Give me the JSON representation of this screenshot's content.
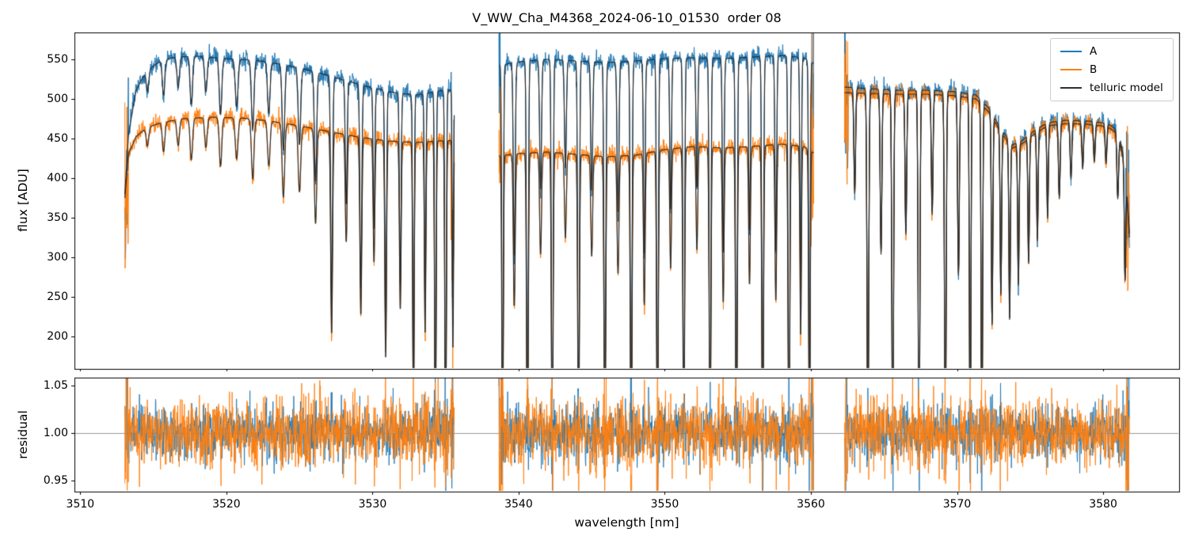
{
  "chart_data": {
    "type": "line",
    "title": "V_WW_Cha_M4368_2024-06-10_01530  order 08",
    "xlabel": "wavelength [nm]",
    "xlim": [
      3509.6,
      3585.2
    ],
    "xticks": [
      3510,
      3520,
      3530,
      3540,
      3550,
      3560,
      3570,
      3580
    ],
    "xtick_labels": [
      "3510",
      "3520",
      "3530",
      "3540",
      "3550",
      "3560",
      "3570",
      "3580"
    ],
    "panels": [
      {
        "name": "flux",
        "ylabel": "flux [ADU]",
        "ylim": [
          159,
          584
        ],
        "yticks": [
          200,
          250,
          300,
          350,
          400,
          450,
          500,
          550
        ],
        "ytick_labels": [
          "200",
          "250",
          "300",
          "350",
          "400",
          "450",
          "500",
          "550"
        ]
      },
      {
        "name": "residual",
        "ylabel": "residual",
        "ylim": [
          0.938,
          1.058
        ],
        "yticks": [
          0.95,
          1.0,
          1.05
        ],
        "ytick_labels": [
          "0.95",
          "1.00",
          "1.05"
        ],
        "hline": 1.0,
        "hline_color": "#808080"
      }
    ],
    "legend": [
      {
        "label": "A",
        "color": "#1f77b4"
      },
      {
        "label": "B",
        "color": "#ff7f0e"
      },
      {
        "label": "telluric model",
        "color": "#2e2e2e"
      }
    ],
    "segments": [
      [
        3513.05,
        3535.6
      ],
      [
        3538.65,
        3560.2
      ],
      [
        3562.3,
        3581.8
      ]
    ],
    "continuum_A": [
      [
        3513.05,
        380
      ],
      [
        3513.3,
        455
      ],
      [
        3513.8,
        510
      ],
      [
        3514.5,
        535
      ],
      [
        3515.5,
        548
      ],
      [
        3516.5,
        553
      ],
      [
        3518,
        554
      ],
      [
        3520,
        551
      ],
      [
        3522,
        549
      ],
      [
        3524,
        543
      ],
      [
        3526,
        535
      ],
      [
        3528,
        524
      ],
      [
        3530,
        514
      ],
      [
        3531.5,
        508
      ],
      [
        3533,
        505
      ],
      [
        3534.5,
        510
      ],
      [
        3535.6,
        512
      ],
      [
        3538.65,
        542
      ],
      [
        3540,
        547
      ],
      [
        3542,
        550
      ],
      [
        3544,
        548
      ],
      [
        3546,
        546
      ],
      [
        3548,
        548
      ],
      [
        3550,
        551
      ],
      [
        3552,
        552
      ],
      [
        3554,
        551
      ],
      [
        3556,
        553
      ],
      [
        3558,
        555
      ],
      [
        3559.5,
        552
      ],
      [
        3560.2,
        545
      ],
      [
        3562.3,
        515
      ],
      [
        3564,
        513
      ],
      [
        3566,
        511
      ],
      [
        3568,
        511
      ],
      [
        3570,
        509
      ],
      [
        3571.3,
        505
      ],
      [
        3572.2,
        488
      ],
      [
        3573,
        462
      ],
      [
        3573.8,
        442
      ],
      [
        3574.5,
        448
      ],
      [
        3575.3,
        460
      ],
      [
        3576.2,
        470
      ],
      [
        3577.5,
        473
      ],
      [
        3579,
        472
      ],
      [
        3580.3,
        469
      ],
      [
        3581,
        460
      ],
      [
        3581.5,
        420
      ],
      [
        3581.8,
        330
      ]
    ],
    "continuum_B": [
      [
        3513.05,
        375
      ],
      [
        3513.3,
        430
      ],
      [
        3513.8,
        452
      ],
      [
        3514.5,
        463
      ],
      [
        3515.5,
        470
      ],
      [
        3517,
        475
      ],
      [
        3519,
        477
      ],
      [
        3521,
        476
      ],
      [
        3523,
        472
      ],
      [
        3525,
        466
      ],
      [
        3527,
        459
      ],
      [
        3529,
        452
      ],
      [
        3531,
        447
      ],
      [
        3533,
        445
      ],
      [
        3534.5,
        447
      ],
      [
        3535.6,
        448
      ],
      [
        3538.65,
        428
      ],
      [
        3540,
        431
      ],
      [
        3542,
        433
      ],
      [
        3544,
        430
      ],
      [
        3546,
        427
      ],
      [
        3548,
        429
      ],
      [
        3550,
        436
      ],
      [
        3552,
        440
      ],
      [
        3554,
        438
      ],
      [
        3556,
        440
      ],
      [
        3558,
        443
      ],
      [
        3559.5,
        440
      ],
      [
        3560.2,
        432
      ],
      [
        3562.3,
        508
      ],
      [
        3564,
        507
      ],
      [
        3566,
        506
      ],
      [
        3568,
        506
      ],
      [
        3570,
        504
      ],
      [
        3571.3,
        500
      ],
      [
        3572.2,
        483
      ],
      [
        3573,
        458
      ],
      [
        3573.8,
        438
      ],
      [
        3574.5,
        444
      ],
      [
        3575.3,
        456
      ],
      [
        3576.2,
        466
      ],
      [
        3577.5,
        469
      ],
      [
        3579,
        468
      ],
      [
        3580.3,
        465
      ],
      [
        3581,
        456
      ],
      [
        3581.5,
        416
      ],
      [
        3581.8,
        325
      ]
    ],
    "telluric_lines": [
      [
        3514.6,
        0.05,
        0.12
      ],
      [
        3515.7,
        0.08,
        0.12
      ],
      [
        3516.7,
        0.07,
        0.12
      ],
      [
        3517.6,
        0.11,
        0.12
      ],
      [
        3518.6,
        0.08,
        0.12
      ],
      [
        3519.6,
        0.13,
        0.12
      ],
      [
        3520.7,
        0.11,
        0.13
      ],
      [
        3521.8,
        0.16,
        0.12
      ],
      [
        3522.9,
        0.12,
        0.12
      ],
      [
        3523.9,
        0.2,
        0.12
      ],
      [
        3525.0,
        0.18,
        0.12
      ],
      [
        3526.1,
        0.26,
        0.11
      ],
      [
        3527.2,
        0.56,
        0.09
      ],
      [
        3528.2,
        0.3,
        0.09
      ],
      [
        3529.2,
        0.5,
        0.09
      ],
      [
        3530.1,
        0.35,
        0.08
      ],
      [
        3530.9,
        0.62,
        0.08
      ],
      [
        3531.9,
        0.48,
        0.08
      ],
      [
        3532.8,
        0.8,
        0.07
      ],
      [
        3533.6,
        0.55,
        0.07
      ],
      [
        3534.3,
        0.93,
        0.07
      ],
      [
        3535.0,
        0.96,
        0.07
      ],
      [
        3535.5,
        0.6,
        0.06
      ],
      [
        3538.9,
        0.97,
        0.07
      ],
      [
        3539.7,
        0.45,
        0.09
      ],
      [
        3540.6,
        0.97,
        0.08
      ],
      [
        3541.5,
        0.3,
        0.09
      ],
      [
        3542.3,
        0.95,
        0.08
      ],
      [
        3543.2,
        0.25,
        0.09
      ],
      [
        3544.1,
        0.9,
        0.08
      ],
      [
        3545.0,
        0.3,
        0.09
      ],
      [
        3545.9,
        0.93,
        0.08
      ],
      [
        3546.8,
        0.35,
        0.09
      ],
      [
        3547.7,
        0.95,
        0.08
      ],
      [
        3548.6,
        0.45,
        0.08
      ],
      [
        3549.5,
        0.93,
        0.08
      ],
      [
        3550.4,
        0.35,
        0.08
      ],
      [
        3551.3,
        0.9,
        0.08
      ],
      [
        3552.2,
        0.3,
        0.08
      ],
      [
        3553.1,
        0.93,
        0.08
      ],
      [
        3554.0,
        0.45,
        0.08
      ],
      [
        3554.9,
        0.95,
        0.08
      ],
      [
        3555.8,
        0.4,
        0.08
      ],
      [
        3556.7,
        0.93,
        0.08
      ],
      [
        3557.6,
        0.45,
        0.08
      ],
      [
        3558.5,
        0.96,
        0.08
      ],
      [
        3559.3,
        0.55,
        0.07
      ],
      [
        3559.9,
        0.9,
        0.07
      ],
      [
        3563.0,
        0.25,
        0.08
      ],
      [
        3563.9,
        0.9,
        0.08
      ],
      [
        3564.8,
        0.4,
        0.08
      ],
      [
        3565.6,
        0.93,
        0.08
      ],
      [
        3566.5,
        0.35,
        0.08
      ],
      [
        3567.4,
        0.95,
        0.08
      ],
      [
        3568.3,
        0.3,
        0.08
      ],
      [
        3569.2,
        0.9,
        0.08
      ],
      [
        3570.1,
        0.45,
        0.08
      ],
      [
        3570.9,
        0.95,
        0.07
      ],
      [
        3571.7,
        0.93,
        0.07
      ],
      [
        3572.4,
        0.55,
        0.07
      ],
      [
        3573.0,
        0.45,
        0.07
      ],
      [
        3573.6,
        0.5,
        0.07
      ],
      [
        3574.2,
        0.4,
        0.07
      ],
      [
        3574.9,
        0.35,
        0.07
      ],
      [
        3575.5,
        0.3,
        0.07
      ],
      [
        3576.2,
        0.25,
        0.07
      ],
      [
        3577.0,
        0.2,
        0.08
      ],
      [
        3577.8,
        0.15,
        0.08
      ],
      [
        3578.6,
        0.12,
        0.08
      ],
      [
        3579.4,
        0.1,
        0.08
      ],
      [
        3580.2,
        0.1,
        0.08
      ],
      [
        3581.0,
        0.18,
        0.08
      ],
      [
        3581.5,
        0.35,
        0.07
      ]
    ],
    "noise": {
      "seed": 20240610,
      "flux_sigma": 5.5,
      "residual_sigma_A": 0.014,
      "residual_sigma_B": 0.017,
      "edge_zone_nm": 0.25,
      "edge_factor_flux": 12,
      "edge_factor_residual": 3
    },
    "sample_step_nm": 0.02
  }
}
